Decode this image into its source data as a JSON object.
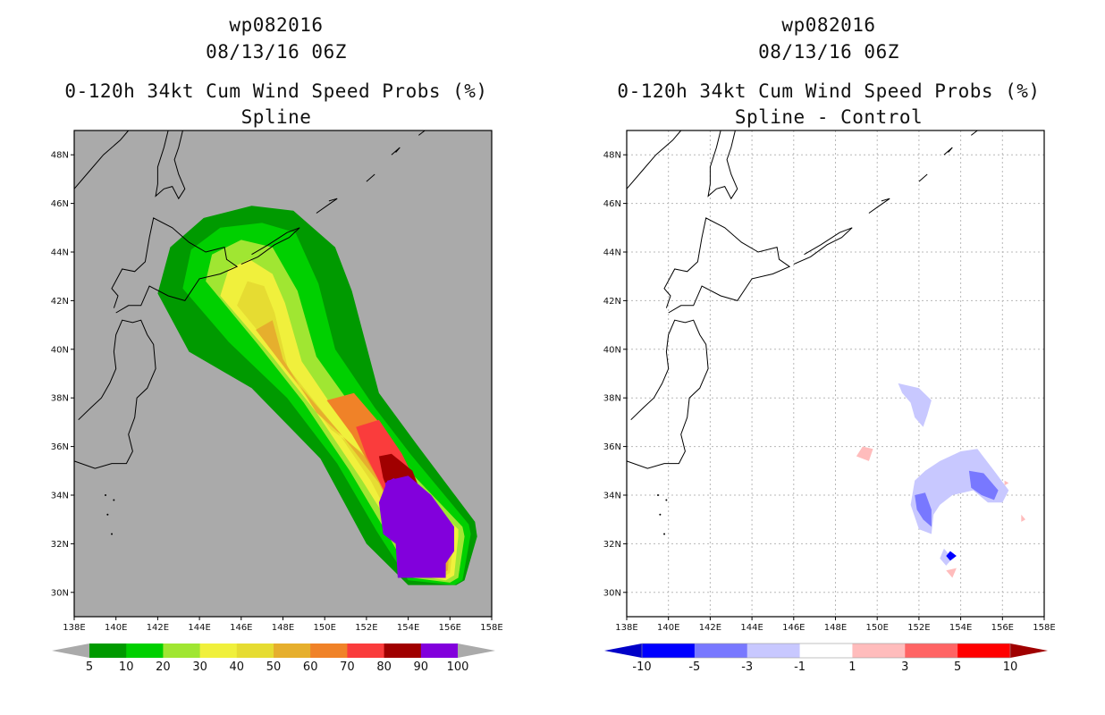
{
  "chart_data": [
    {
      "type": "heatmap",
      "storm_id": "wp082016",
      "datetime": "08/13/16 06Z",
      "title": "0-120h 34kt Cum Wind Speed Probs (%)",
      "subtitle": "Spline",
      "x_ticks": [
        "138E",
        "140E",
        "142E",
        "144E",
        "146E",
        "148E",
        "150E",
        "152E",
        "154E",
        "156E",
        "158E"
      ],
      "y_ticks": [
        "30N",
        "32N",
        "34N",
        "36N",
        "38N",
        "40N",
        "42N",
        "44N",
        "46N",
        "48N"
      ],
      "xlim": [
        138,
        158
      ],
      "ylim": [
        29,
        49
      ],
      "colorbar_labels": [
        "5",
        "10",
        "20",
        "30",
        "40",
        "50",
        "60",
        "70",
        "80",
        "90",
        "100"
      ],
      "levels": [
        5,
        10,
        20,
        30,
        40,
        50,
        60,
        70,
        80,
        90,
        100
      ],
      "colors": {
        "background": "#aaaaaa",
        "c5": "#009a00",
        "c10": "#00d000",
        "c20": "#a0e632",
        "c30": "#f0f03c",
        "c40": "#e6dc32",
        "c50": "#e6af2d",
        "c60": "#f08228",
        "c70": "#fa3c3c",
        "c80": "#a00000",
        "c90": "#8200dc"
      }
    },
    {
      "type": "heatmap",
      "storm_id": "wp082016",
      "datetime": "08/13/16 06Z",
      "title": "0-120h 34kt Cum Wind Speed Probs (%)",
      "subtitle": "Spline - Control",
      "x_ticks": [
        "138E",
        "140E",
        "142E",
        "144E",
        "146E",
        "148E",
        "150E",
        "152E",
        "154E",
        "156E",
        "158E"
      ],
      "y_ticks": [
        "30N",
        "32N",
        "34N",
        "36N",
        "38N",
        "40N",
        "42N",
        "44N",
        "46N",
        "48N"
      ],
      "xlim": [
        138,
        158
      ],
      "ylim": [
        29,
        49
      ],
      "colorbar_labels": [
        "-10",
        "-5",
        "-3",
        "-1",
        "1",
        "3",
        "5",
        "10"
      ],
      "levels": [
        -10,
        -5,
        -3,
        -1,
        1,
        3,
        5,
        10
      ],
      "colors": {
        "background": "#ffffff",
        "n10": "#0000c8",
        "n5": "#0000ff",
        "n3": "#7878ff",
        "n1": "#c8c8ff",
        "zero": "#ffffff",
        "p1": "#ffbcbc",
        "p3": "#ff6464",
        "p5": "#ff0000",
        "p10": "#a00000"
      }
    }
  ]
}
